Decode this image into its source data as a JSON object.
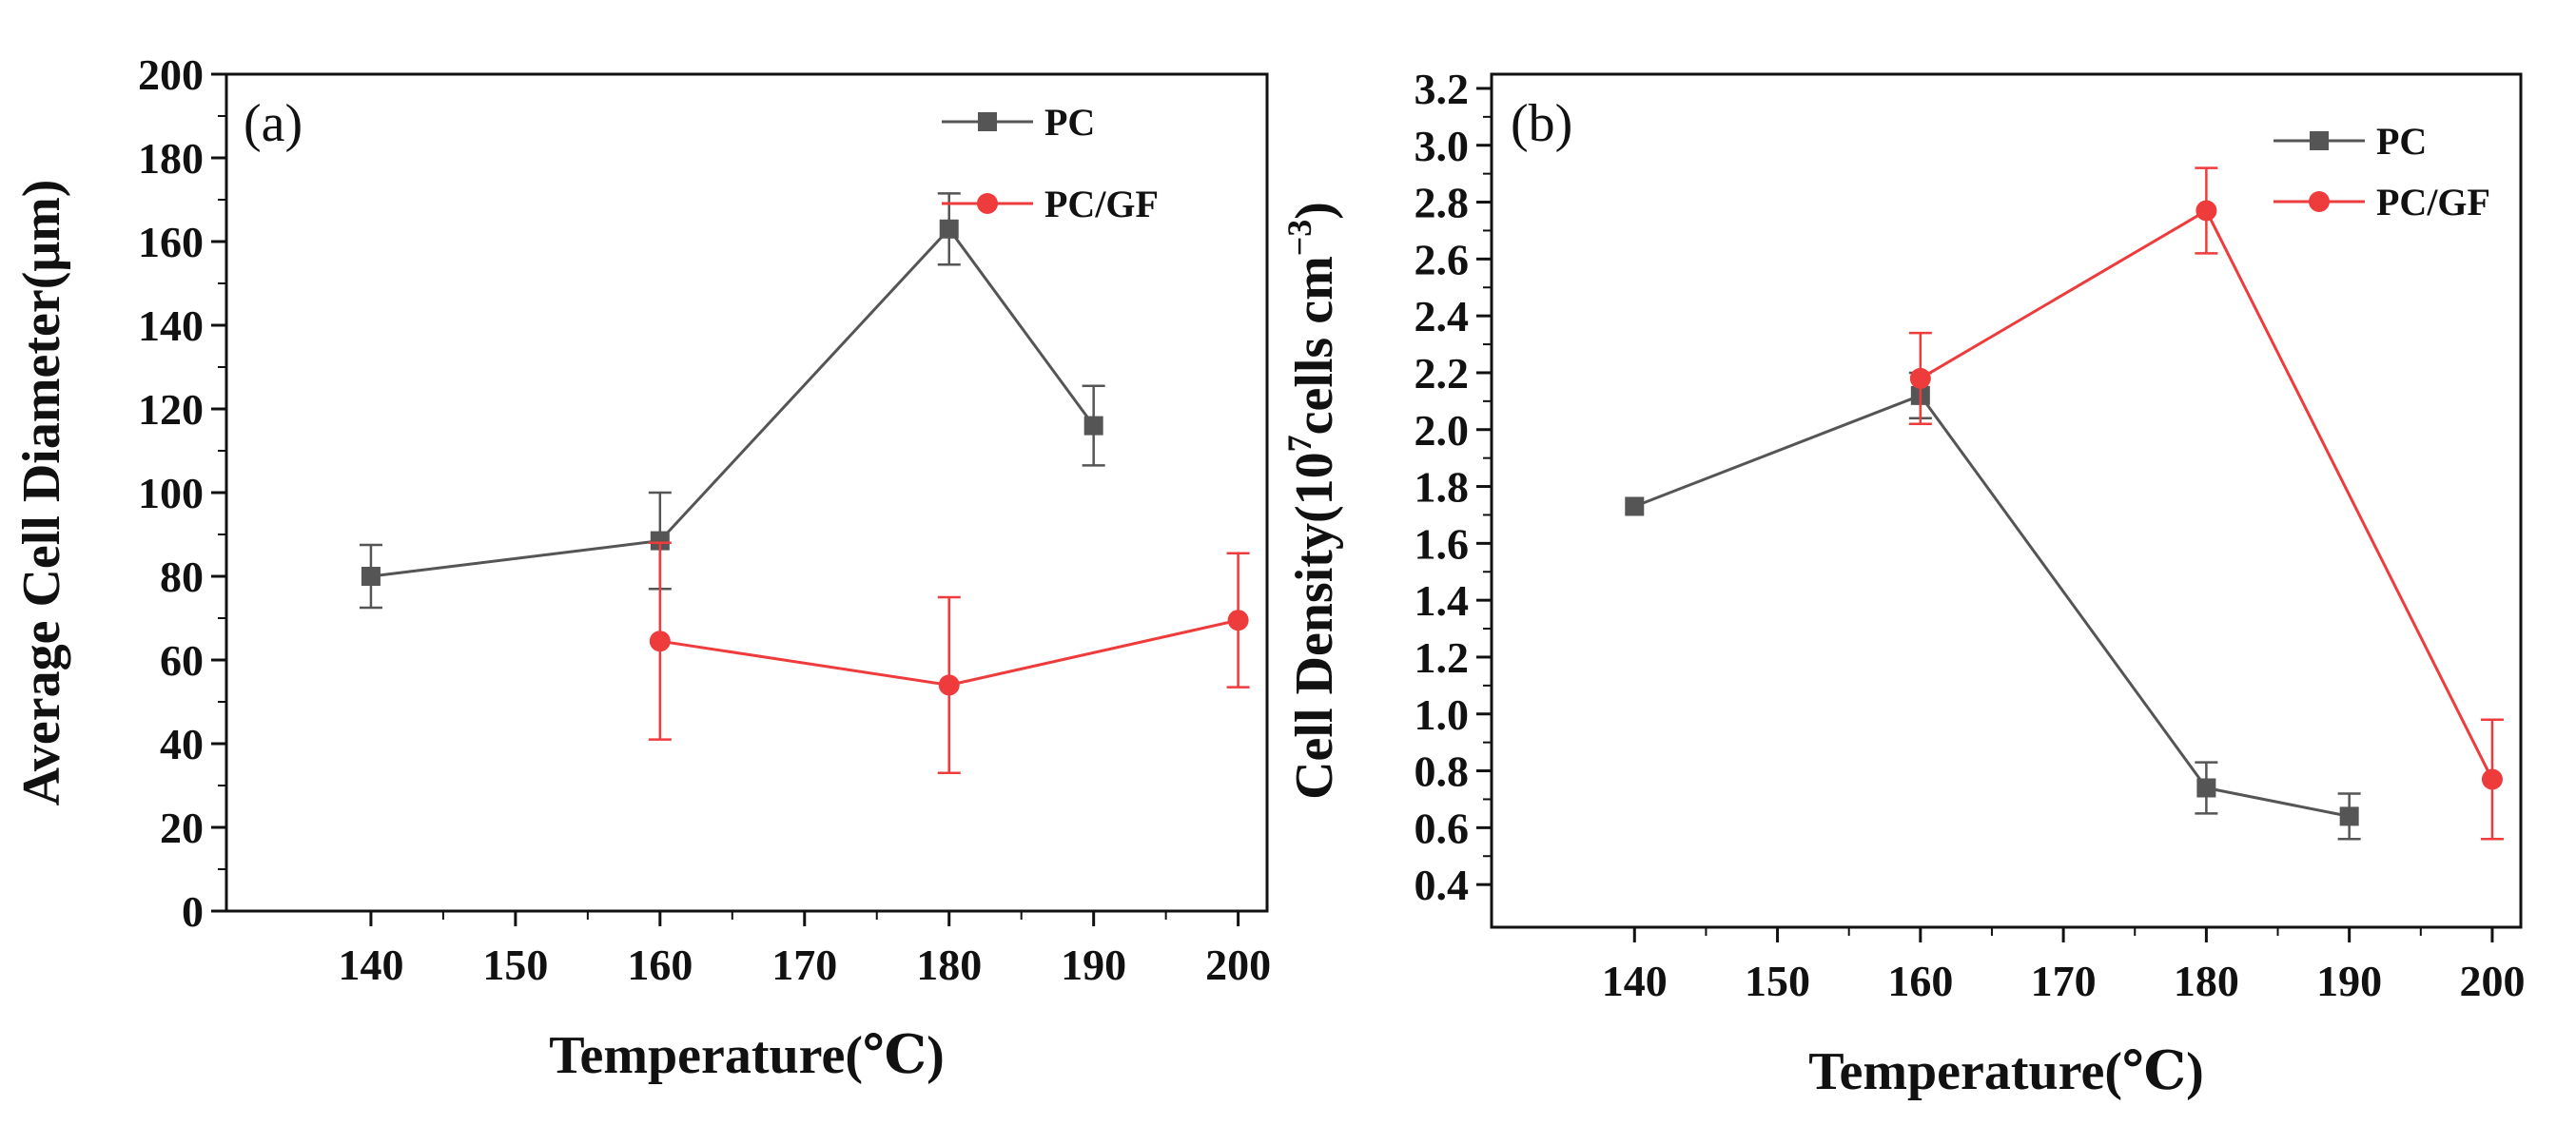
{
  "chart_data": [
    {
      "id": "a",
      "type": "line",
      "panel_label": "(a)",
      "title": "",
      "xlabel": "Temperature(℃)",
      "ylabel": "Average Cell Diameter(μm)",
      "xlim": [
        130,
        202
      ],
      "ylim": [
        0,
        200
      ],
      "x_ticks": [
        140,
        150,
        160,
        170,
        180,
        190,
        200
      ],
      "y_ticks": [
        0,
        20,
        40,
        60,
        80,
        100,
        120,
        140,
        160,
        180,
        200
      ],
      "y_tick_labels": [
        "0",
        "20",
        "40",
        "60",
        "80",
        "100",
        "120",
        "140",
        "160",
        "180",
        "200"
      ],
      "legend_position": "top-right",
      "series": [
        {
          "name": "PC",
          "color": "#555555",
          "marker": "square",
          "x": [
            140,
            160,
            180,
            190
          ],
          "y": [
            80,
            88.5,
            163,
            116
          ],
          "error": [
            7.5,
            11.5,
            8.5,
            9.5
          ]
        },
        {
          "name": "PC/GF",
          "color": "#ee3b3b",
          "marker": "circle",
          "x": [
            160,
            180,
            200
          ],
          "y": [
            64.5,
            54,
            69.5
          ],
          "error": [
            23.5,
            21,
            16
          ]
        }
      ]
    },
    {
      "id": "b",
      "type": "line",
      "panel_label": "(b)",
      "title": "",
      "xlabel": "Temperature(℃)",
      "ylabel_prefix": "Cell Density(10",
      "ylabel_sup": "7",
      "ylabel_mid": "cells cm",
      "ylabel_sup2": "−3",
      "ylabel_suffix": ")",
      "xlim": [
        130,
        202
      ],
      "ylim": [
        0.25,
        3.25
      ],
      "x_ticks": [
        140,
        150,
        160,
        170,
        180,
        190,
        200
      ],
      "y_ticks": [
        0.4,
        0.6,
        0.8,
        1.0,
        1.2,
        1.4,
        1.6,
        1.8,
        2.0,
        2.2,
        2.4,
        2.6,
        2.8,
        3.0,
        3.2
      ],
      "y_tick_labels": [
        "0.4",
        "0.6",
        "0.8",
        "1.0",
        "1.2",
        "1.4",
        "1.6",
        "1.8",
        "2.0",
        "2.2",
        "2.4",
        "2.6",
        "2.8",
        "3.0",
        "3.2"
      ],
      "legend_position": "top-right",
      "series": [
        {
          "name": "PC",
          "color": "#555555",
          "marker": "square",
          "x": [
            140,
            160,
            180,
            190
          ],
          "y": [
            1.73,
            2.12,
            0.74,
            0.64
          ],
          "error": [
            0,
            0.08,
            0.09,
            0.08
          ]
        },
        {
          "name": "PC/GF",
          "color": "#ee3b3b",
          "marker": "circle",
          "x": [
            160,
            180,
            200
          ],
          "y": [
            2.18,
            2.77,
            0.77
          ],
          "error": [
            0.16,
            0.15,
            0.21
          ]
        }
      ]
    }
  ]
}
